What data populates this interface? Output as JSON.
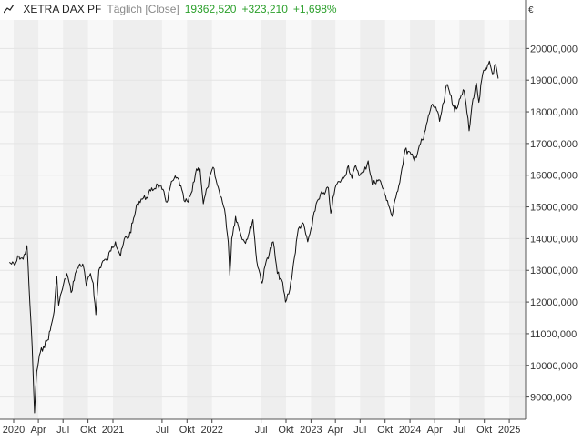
{
  "header": {
    "name": "XETRA DAX PF",
    "mode": "Täglich [Close]",
    "last": "19362,520",
    "change": "+323,210",
    "change_pct": "+1,698%"
  },
  "colors": {
    "positive": "#2ca02c",
    "line": "#111111",
    "grid": "#e4e4e4",
    "band_light": "#f8f8f8",
    "band_dark": "#eeeeee"
  },
  "chart_data": {
    "type": "line",
    "title": "XETRA DAX PF",
    "currency_label": "€",
    "ylim": [
      8300,
      20900
    ],
    "xlim": [
      "2020-01-01",
      "2025-02-10"
    ],
    "grid": true,
    "y_ticks": [
      "9000,000",
      "10000,000",
      "11000,000",
      "12000,000",
      "13000,000",
      "14000,000",
      "15000,000",
      "16000,000",
      "17000,000",
      "18000,000",
      "19000,000",
      "20000,000"
    ],
    "x_ticks": [
      {
        "label": "2020",
        "date": "2020-01-01"
      },
      {
        "label": "Apr",
        "date": "2020-04-01"
      },
      {
        "label": "Jul",
        "date": "2020-07-01"
      },
      {
        "label": "Okt",
        "date": "2020-10-01"
      },
      {
        "label": "2021",
        "date": "2021-01-01"
      },
      {
        "label": "Jul",
        "date": "2021-07-01"
      },
      {
        "label": "Okt",
        "date": "2021-10-01"
      },
      {
        "label": "2022",
        "date": "2022-01-01"
      },
      {
        "label": "Jul",
        "date": "2022-07-01"
      },
      {
        "label": "Okt",
        "date": "2022-10-01"
      },
      {
        "label": "2023",
        "date": "2023-01-01"
      },
      {
        "label": "Apr",
        "date": "2023-04-01"
      },
      {
        "label": "Jul",
        "date": "2023-07-01"
      },
      {
        "label": "Okt",
        "date": "2023-10-01"
      },
      {
        "label": "2024",
        "date": "2024-01-01"
      },
      {
        "label": "Apr",
        "date": "2024-04-01"
      },
      {
        "label": "Jul",
        "date": "2024-07-01"
      },
      {
        "label": "Okt",
        "date": "2024-10-01"
      },
      {
        "label": "2025",
        "date": "2025-01-01"
      }
    ],
    "series": [
      {
        "values": [
          [
            "2019-12-16",
            13250
          ],
          [
            "2020-01-05",
            13150
          ],
          [
            "2020-01-20",
            13450
          ],
          [
            "2020-02-05",
            13350
          ],
          [
            "2020-02-19",
            13780
          ],
          [
            "2020-03-01",
            11900
          ],
          [
            "2020-03-09",
            10600
          ],
          [
            "2020-03-18",
            8500
          ],
          [
            "2020-03-26",
            9800
          ],
          [
            "2020-04-08",
            10400
          ],
          [
            "2020-04-20",
            10600
          ],
          [
            "2020-05-05",
            10800
          ],
          [
            "2020-05-15",
            11100
          ],
          [
            "2020-05-29",
            11700
          ],
          [
            "2020-06-08",
            12800
          ],
          [
            "2020-06-15",
            11900
          ],
          [
            "2020-06-25",
            12300
          ],
          [
            "2020-07-15",
            12900
          ],
          [
            "2020-07-31",
            12300
          ],
          [
            "2020-08-15",
            12900
          ],
          [
            "2020-09-01",
            13200
          ],
          [
            "2020-09-15",
            13100
          ],
          [
            "2020-09-25",
            12500
          ],
          [
            "2020-10-10",
            12900
          ],
          [
            "2020-10-20",
            12600
          ],
          [
            "2020-10-30",
            11600
          ],
          [
            "2020-11-10",
            13000
          ],
          [
            "2020-11-25",
            13300
          ],
          [
            "2020-12-10",
            13300
          ],
          [
            "2020-12-28",
            13750
          ],
          [
            "2021-01-10",
            13900
          ],
          [
            "2021-01-29",
            13450
          ],
          [
            "2021-02-15",
            14050
          ],
          [
            "2021-03-01",
            14050
          ],
          [
            "2021-03-15",
            14500
          ],
          [
            "2021-04-01",
            15100
          ],
          [
            "2021-04-15",
            15250
          ],
          [
            "2021-05-05",
            15300
          ],
          [
            "2021-05-20",
            15500
          ],
          [
            "2021-06-15",
            15700
          ],
          [
            "2021-07-01",
            15550
          ],
          [
            "2021-07-19",
            15150
          ],
          [
            "2021-08-01",
            15650
          ],
          [
            "2021-08-15",
            15900
          ],
          [
            "2021-09-01",
            15850
          ],
          [
            "2021-09-20",
            15200
          ],
          [
            "2021-10-05",
            15150
          ],
          [
            "2021-10-20",
            15500
          ],
          [
            "2021-11-05",
            16200
          ],
          [
            "2021-11-18",
            16200
          ],
          [
            "2021-11-30",
            15100
          ],
          [
            "2021-12-15",
            15600
          ],
          [
            "2022-01-05",
            16250
          ],
          [
            "2022-01-20",
            15700
          ],
          [
            "2022-02-05",
            15300
          ],
          [
            "2022-02-20",
            14700
          ],
          [
            "2022-03-02",
            13900
          ],
          [
            "2022-03-08",
            12850
          ],
          [
            "2022-03-15",
            14000
          ],
          [
            "2022-03-29",
            14700
          ],
          [
            "2022-04-15",
            14200
          ],
          [
            "2022-05-01",
            13900
          ],
          [
            "2022-05-15",
            14100
          ],
          [
            "2022-06-01",
            14600
          ],
          [
            "2022-06-15",
            13300
          ],
          [
            "2022-07-05",
            12600
          ],
          [
            "2022-07-20",
            13300
          ],
          [
            "2022-08-15",
            13900
          ],
          [
            "2022-08-30",
            12900
          ],
          [
            "2022-09-15",
            12700
          ],
          [
            "2022-09-29",
            12000
          ],
          [
            "2022-10-15",
            12400
          ],
          [
            "2022-11-01",
            13400
          ],
          [
            "2022-11-15",
            14300
          ],
          [
            "2022-12-01",
            14500
          ],
          [
            "2022-12-20",
            13900
          ],
          [
            "2023-01-05",
            14400
          ],
          [
            "2023-01-20",
            15100
          ],
          [
            "2023-02-05",
            15400
          ],
          [
            "2023-02-20",
            15400
          ],
          [
            "2023-03-06",
            15600
          ],
          [
            "2023-03-15",
            14800
          ],
          [
            "2023-03-31",
            15600
          ],
          [
            "2023-04-15",
            15800
          ],
          [
            "2023-05-01",
            15900
          ],
          [
            "2023-05-19",
            16300
          ],
          [
            "2023-06-01",
            15900
          ],
          [
            "2023-06-15",
            16300
          ],
          [
            "2023-07-01",
            16000
          ],
          [
            "2023-07-15",
            16100
          ],
          [
            "2023-07-31",
            16450
          ],
          [
            "2023-08-15",
            15700
          ],
          [
            "2023-09-01",
            15850
          ],
          [
            "2023-09-15",
            15800
          ],
          [
            "2023-09-29",
            15400
          ],
          [
            "2023-10-10",
            15200
          ],
          [
            "2023-10-27",
            14700
          ],
          [
            "2023-11-10",
            15300
          ],
          [
            "2023-11-28",
            16000
          ],
          [
            "2023-12-14",
            16800
          ],
          [
            "2024-01-05",
            16650
          ],
          [
            "2024-01-17",
            16450
          ],
          [
            "2024-02-05",
            16950
          ],
          [
            "2024-02-20",
            17150
          ],
          [
            "2024-03-05",
            17700
          ],
          [
            "2024-03-20",
            18200
          ],
          [
            "2024-04-05",
            18150
          ],
          [
            "2024-04-19",
            17700
          ],
          [
            "2024-05-05",
            18300
          ],
          [
            "2024-05-15",
            18850
          ],
          [
            "2024-06-01",
            18500
          ],
          [
            "2024-06-14",
            18000
          ],
          [
            "2024-07-01",
            18400
          ],
          [
            "2024-07-15",
            18700
          ],
          [
            "2024-07-25",
            18300
          ],
          [
            "2024-08-06",
            17400
          ],
          [
            "2024-08-20",
            18400
          ],
          [
            "2024-09-02",
            18900
          ],
          [
            "2024-09-11",
            18300
          ],
          [
            "2024-09-25",
            19200
          ],
          [
            "2024-10-10",
            19350
          ],
          [
            "2024-10-20",
            19600
          ],
          [
            "2024-10-31",
            19200
          ],
          [
            "2024-11-12",
            19500
          ],
          [
            "2024-11-21",
            19050
          ]
        ]
      }
    ]
  }
}
